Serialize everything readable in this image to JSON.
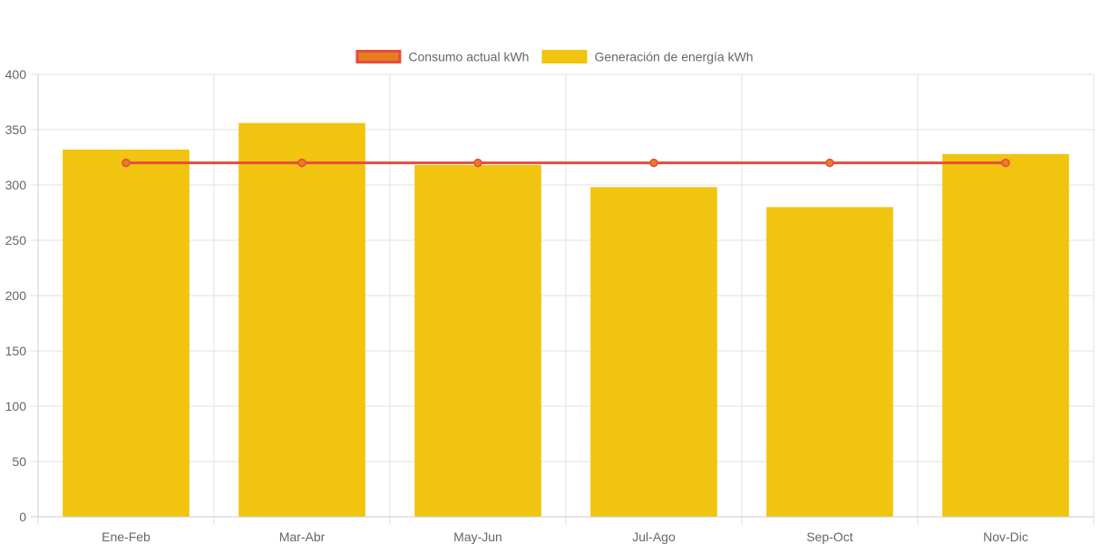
{
  "chart_data": {
    "type": "bar",
    "categories": [
      "Ene-Feb",
      "Mar-Abr",
      "May-Jun",
      "Jul-Ago",
      "Sep-Oct",
      "Nov-Dic"
    ],
    "series": [
      {
        "name": "Consumo actual kWh",
        "type": "line",
        "values": [
          320,
          320,
          320,
          320,
          320,
          320
        ],
        "color": "#e74c3c",
        "fill_color": "#e67e22"
      },
      {
        "name": "Generación de energía kWh",
        "type": "bar",
        "values": [
          332,
          356,
          318,
          298,
          280,
          328
        ],
        "color": "#f1c40f"
      }
    ],
    "ylim": [
      0,
      400
    ],
    "yticks": [
      0,
      50,
      100,
      150,
      200,
      250,
      300,
      350,
      400
    ],
    "grid": true,
    "legend_position": "top-center",
    "title": "",
    "xlabel": "",
    "ylabel": ""
  }
}
